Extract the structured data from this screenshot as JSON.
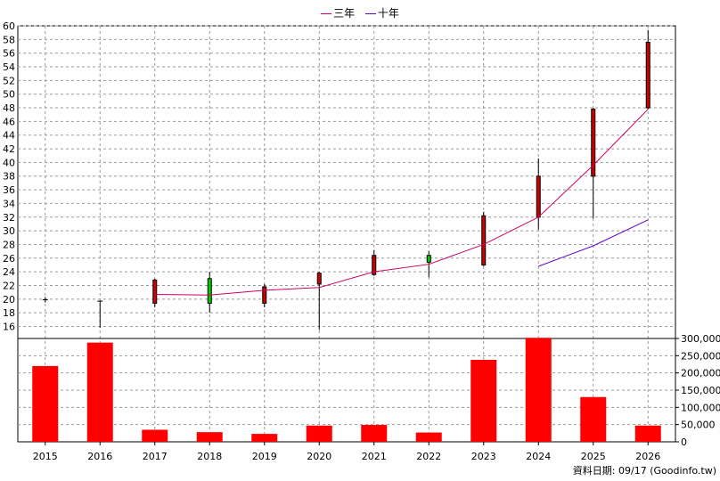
{
  "legend": {
    "items": [
      {
        "label": "三年",
        "color": "#cc0066"
      },
      {
        "label": "十年",
        "color": "#6600cc"
      }
    ]
  },
  "source_note": "資料日期: 09/17  (Goodinfo.tw)",
  "chart_data": {
    "type": "candlestick+line+bar",
    "categories": [
      "2015",
      "2016",
      "2017",
      "2018",
      "2019",
      "2020",
      "2021",
      "2022",
      "2023",
      "2024",
      "2025",
      "2026"
    ],
    "price_axis": {
      "ylim": [
        14.5,
        60
      ],
      "ticks": [
        16,
        18,
        20,
        22,
        24,
        26,
        28,
        30,
        32,
        34,
        36,
        38,
        40,
        42,
        44,
        46,
        48,
        50,
        52,
        54,
        56,
        58,
        60
      ]
    },
    "volume_axis": {
      "ylim": [
        0,
        300000
      ],
      "ticks": [
        0,
        50000,
        100000,
        150000,
        200000,
        250000,
        300000
      ],
      "tick_labels": [
        "0",
        "50,000",
        "100,000",
        "150,000",
        "200,000",
        "250,000",
        "300,000"
      ]
    },
    "candles": [
      {
        "x": "2015",
        "open": 19.9,
        "high": 20.3,
        "low": 19.5,
        "close": 19.9,
        "color": "#000000"
      },
      {
        "x": "2016",
        "open": 19.7,
        "high": 19.8,
        "low": 15.8,
        "close": 19.7,
        "color": "#000000"
      },
      {
        "x": "2017",
        "open": 19.4,
        "high": 23.0,
        "low": 18.8,
        "close": 22.8,
        "color": "#cc0000"
      },
      {
        "x": "2018",
        "open": 23.0,
        "high": 24.0,
        "low": 18.0,
        "close": 19.4,
        "color": "#00cc00"
      },
      {
        "x": "2019",
        "open": 19.4,
        "high": 22.2,
        "low": 18.8,
        "close": 21.8,
        "color": "#cc0000"
      },
      {
        "x": "2020",
        "open": 22.2,
        "high": 24.0,
        "low": 15.5,
        "close": 23.8,
        "color": "#cc0000"
      },
      {
        "x": "2021",
        "open": 23.6,
        "high": 27.2,
        "low": 23.4,
        "close": 26.4,
        "color": "#cc0000"
      },
      {
        "x": "2022",
        "open": 26.4,
        "high": 27.0,
        "low": 23.2,
        "close": 25.4,
        "color": "#00cc00"
      },
      {
        "x": "2023",
        "open": 25.0,
        "high": 32.8,
        "low": 24.8,
        "close": 32.2,
        "color": "#cc0000"
      },
      {
        "x": "2024",
        "open": 32.0,
        "high": 40.6,
        "low": 30.2,
        "close": 38.0,
        "color": "#cc0000"
      },
      {
        "x": "2025",
        "open": 38.0,
        "high": 48.0,
        "low": 31.8,
        "close": 47.8,
        "color": "#cc0000"
      },
      {
        "x": "2026",
        "open": 48.0,
        "high": 59.4,
        "low": 47.8,
        "close": 57.6,
        "color": "#cc0000"
      }
    ],
    "series": [
      {
        "name": "三年",
        "color": "#cc0066",
        "points": [
          [
            "2017",
            20.7
          ],
          [
            "2018",
            20.6
          ],
          [
            "2019",
            21.3
          ],
          [
            "2020",
            21.7
          ],
          [
            "2021",
            24.0
          ],
          [
            "2022",
            25.1
          ],
          [
            "2023",
            28.0
          ],
          [
            "2024",
            32.0
          ],
          [
            "2025",
            39.6
          ],
          [
            "2026",
            47.8
          ]
        ]
      },
      {
        "name": "十年",
        "color": "#6600cc",
        "points": [
          [
            "2024",
            24.8
          ],
          [
            "2025",
            27.8
          ],
          [
            "2026",
            31.6
          ]
        ]
      }
    ],
    "volume": [
      220000,
      288000,
      35000,
      28000,
      23000,
      47000,
      49000,
      27000,
      238000,
      302000,
      130000,
      47000
    ],
    "volume_color": "#ff0000"
  }
}
